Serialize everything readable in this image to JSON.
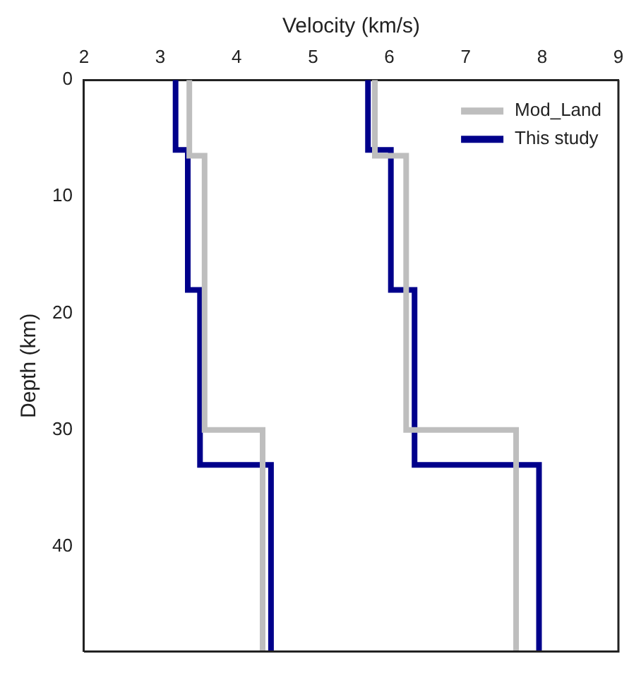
{
  "chart_data": {
    "type": "line",
    "xlabel": "Velocity (km/s)",
    "ylabel": "Depth (km)",
    "xlim": [
      2,
      9
    ],
    "xticks": [
      2,
      3,
      4,
      5,
      6,
      7,
      8,
      9
    ],
    "ylim": [
      49,
      0
    ],
    "yticks": [
      0,
      10,
      20,
      30,
      40
    ],
    "grid": false,
    "legend": "top right",
    "marker": "none",
    "line_style": "solid",
    "series": [
      {
        "name": "Mod_Land",
        "color": "#bebebe",
        "x": [
          3.38,
          3.38,
          3.58,
          3.58,
          4.34,
          4.34
        ],
        "values": [
          0,
          6.5,
          6.5,
          30,
          30,
          49
        ]
      },
      {
        "color": "#bebebe",
        "x": [
          5.81,
          5.81,
          6.22,
          6.22,
          7.66,
          7.66
        ],
        "values": [
          0,
          6.5,
          6.5,
          30,
          30,
          49
        ]
      },
      {
        "name": "This study",
        "color": "#00008b",
        "x": [
          3.2,
          3.2,
          3.36,
          3.36,
          3.52,
          3.52,
          4.45,
          4.45
        ],
        "values": [
          0,
          6,
          6,
          18,
          18,
          33,
          33,
          49
        ]
      },
      {
        "color": "#00008b",
        "x": [
          5.72,
          5.72,
          6.02,
          6.02,
          6.33,
          6.33,
          7.96,
          7.96
        ],
        "values": [
          0,
          6,
          6,
          18,
          18,
          33,
          33,
          49
        ]
      }
    ]
  }
}
